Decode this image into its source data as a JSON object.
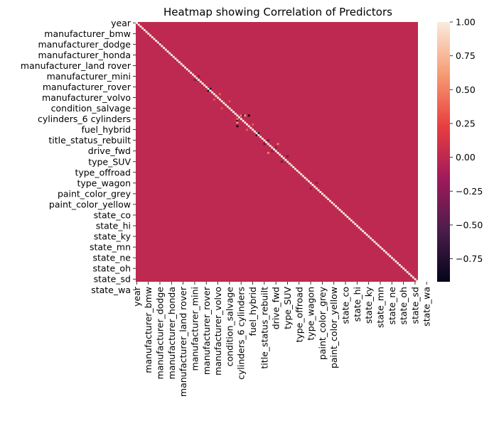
{
  "chart_data": {
    "type": "heatmap",
    "title": "Heatmap showing Correlation of Predictors",
    "xlabel": "",
    "ylabel": "",
    "tick_labels": [
      "year",
      "manufacturer_bmw",
      "manufacturer_dodge",
      "manufacturer_honda",
      "manufacturer_land rover",
      "manufacturer_mini",
      "manufacturer_rover",
      "manufacturer_volvo",
      "condition_salvage",
      "cylinders_6 cylinders",
      "fuel_hybrid",
      "title_status_rebuilt",
      "drive_fwd",
      "type_SUV",
      "type_offroad",
      "type_wagon",
      "paint_color_grey",
      "paint_color_yellow",
      "state_co",
      "state_hi",
      "state_ky",
      "state_mn",
      "state_ne",
      "state_oh",
      "state_sd",
      "state_wa"
    ],
    "matrix_size": 146,
    "tick_step": 6,
    "diagonal_value": 1.0,
    "background_value": 0.0,
    "value_range": [
      -0.92,
      1.0
    ],
    "colorbar": {
      "ticks": [
        1.0,
        0.75,
        0.5,
        0.25,
        0.0,
        -0.25,
        -0.5,
        -0.75
      ],
      "tick_labels": [
        "1.00",
        "0.75",
        "0.50",
        "0.25",
        "0.00",
        "−0.25",
        "−0.50",
        "−0.75"
      ]
    },
    "colormap": "rocket",
    "colormap_stops": [
      "#03051a",
      "#4c1d4b",
      "#a11a5b",
      "#e83f3f",
      "#f69c73",
      "#faebdd"
    ],
    "notable_cells": [
      {
        "row": 38,
        "col": 37,
        "value": -0.85
      },
      {
        "row": 37,
        "col": 38,
        "value": -0.85
      },
      {
        "row": 62,
        "col": 63,
        "value": -0.75
      },
      {
        "row": 63,
        "col": 62,
        "value": -0.75
      },
      {
        "row": 52,
        "col": 54,
        "value": 0.45
      },
      {
        "row": 54,
        "col": 52,
        "value": 0.45
      },
      {
        "row": 52,
        "col": 58,
        "value": -0.9
      },
      {
        "row": 58,
        "col": 52,
        "value": -0.9
      },
      {
        "row": 55,
        "col": 52,
        "value": -0.6
      },
      {
        "row": 52,
        "col": 55,
        "value": -0.6
      },
      {
        "row": 56,
        "col": 52,
        "value": 0.6
      },
      {
        "row": 52,
        "col": 56,
        "value": 0.6
      },
      {
        "row": 66,
        "col": 68,
        "value": -0.5
      },
      {
        "row": 68,
        "col": 66,
        "value": -0.5
      },
      {
        "row": 73,
        "col": 68,
        "value": 0.5
      },
      {
        "row": 68,
        "col": 73,
        "value": 0.5
      },
      {
        "row": 78,
        "col": 75,
        "value": -0.4
      },
      {
        "row": 75,
        "col": 78,
        "value": -0.4
      },
      {
        "row": 32,
        "col": 30,
        "value": -0.35
      },
      {
        "row": 30,
        "col": 32,
        "value": -0.35
      },
      {
        "row": 40,
        "col": 43,
        "value": 0.35
      },
      {
        "row": 43,
        "col": 40,
        "value": 0.35
      },
      {
        "row": 12,
        "col": 11,
        "value": -0.2
      },
      {
        "row": 11,
        "col": 12,
        "value": -0.2
      },
      {
        "row": 48,
        "col": 44,
        "value": 0.3
      },
      {
        "row": 44,
        "col": 48,
        "value": 0.3
      },
      {
        "row": 60,
        "col": 57,
        "value": 0.35
      },
      {
        "row": 57,
        "col": 60,
        "value": 0.35
      },
      {
        "row": 70,
        "col": 72,
        "value": -0.3
      },
      {
        "row": 72,
        "col": 70,
        "value": -0.3
      },
      {
        "row": 90,
        "col": 93,
        "value": -0.3
      },
      {
        "row": 93,
        "col": 90,
        "value": -0.3
      }
    ]
  }
}
